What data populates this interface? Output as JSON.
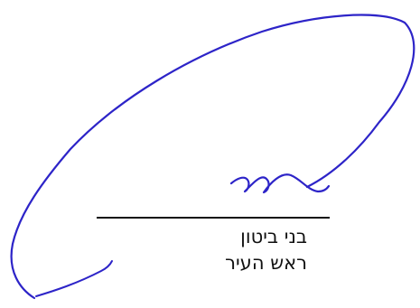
{
  "signature_block": {
    "name": "בני ביטון",
    "title": "ראש העיר"
  },
  "colors": {
    "signature_ink": "#2d24c8",
    "text": "#111111",
    "background": "#ffffff"
  }
}
